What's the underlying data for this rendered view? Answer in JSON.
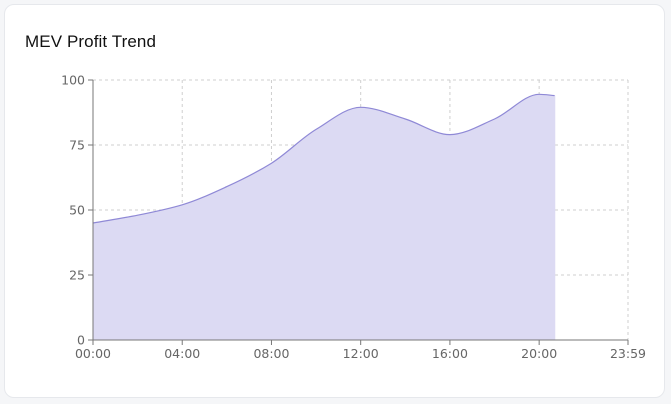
{
  "card": {
    "title": "MEV Profit Trend"
  },
  "colors": {
    "area_fill": "#dcdaf3",
    "line": "#8f89d6",
    "grid": "#cfcfcf",
    "axis": "#777777"
  },
  "chart_data": {
    "type": "area",
    "title": "MEV Profit Trend",
    "xlabel": "",
    "ylabel": "",
    "x_unit": "hours",
    "xlim": [
      0,
      23.983
    ],
    "ylim": [
      0,
      100
    ],
    "grid": true,
    "legend": "none",
    "x_ticks": [
      {
        "value": 0,
        "label": "00:00"
      },
      {
        "value": 4,
        "label": "04:00"
      },
      {
        "value": 8,
        "label": "08:00"
      },
      {
        "value": 12,
        "label": "12:00"
      },
      {
        "value": 16,
        "label": "16:00"
      },
      {
        "value": 20,
        "label": "20:00"
      },
      {
        "value": 23.983,
        "label": "23:59"
      }
    ],
    "y_ticks": [
      0,
      25,
      50,
      75,
      100
    ],
    "series": [
      {
        "name": "MEV Profit",
        "x": [
          0,
          2,
          4,
          6,
          8,
          10,
          12,
          14,
          16,
          18,
          20,
          20.7
        ],
        "values": [
          45,
          48,
          52,
          59,
          68,
          81,
          89.5,
          85,
          79,
          85,
          94.5,
          94
        ]
      }
    ]
  }
}
